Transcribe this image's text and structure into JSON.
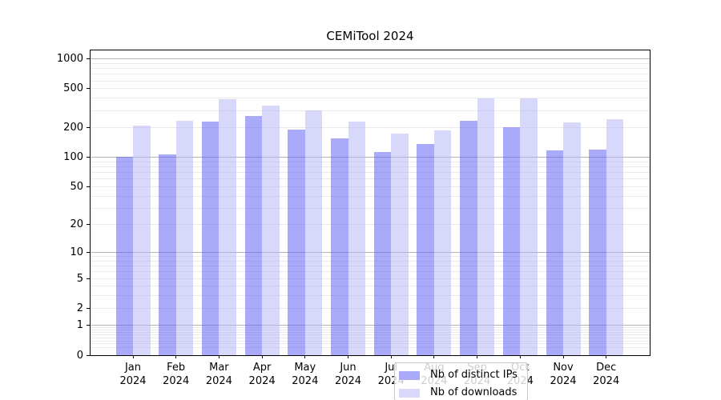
{
  "chart_data": {
    "type": "bar",
    "title": "CEMiTool 2024",
    "categories": [
      "Jan",
      "Feb",
      "Mar",
      "Apr",
      "May",
      "Jun",
      "Jul",
      "Aug",
      "Sep",
      "Oct",
      "Nov",
      "Dec"
    ],
    "year": "2024",
    "series": [
      {
        "name": "Nb of distinct IPs",
        "bar_color": "rgba(85,85,245,0.5)",
        "swatch_color": "#aaaafa",
        "values": [
          102,
          107,
          231,
          262,
          194,
          156,
          114,
          137,
          238,
          204,
          119,
          121
        ]
      },
      {
        "name": "Nb of downloads",
        "bar_color": "rgba(177,177,245,0.5)",
        "swatch_color": "#d8d8fa",
        "values": [
          210,
          238,
          389,
          340,
          300,
          233,
          174,
          190,
          402,
          402,
          226,
          244
        ]
      }
    ],
    "yscale": "log1p",
    "ylim": [
      0,
      1224
    ],
    "yticks": [
      {
        "v": 0,
        "label": "0"
      },
      {
        "v": 1,
        "label": "1"
      },
      {
        "v": 2,
        "label": "2"
      },
      {
        "v": 5,
        "label": "5"
      },
      {
        "v": 10,
        "label": "10"
      },
      {
        "v": 20,
        "label": "20"
      },
      {
        "v": 50,
        "label": "50"
      },
      {
        "v": 100,
        "label": "100"
      },
      {
        "v": 200,
        "label": "200"
      },
      {
        "v": 500,
        "label": "500"
      },
      {
        "v": 1000,
        "label": "1000"
      }
    ],
    "grid": {
      "major_values": [
        1,
        10,
        100,
        1000
      ],
      "major_color": "#b4b4b4",
      "minor_color": "#eaeaea"
    },
    "legend_position": "lower center",
    "background_color": "#ffffff",
    "spine_color": "#000000",
    "xlabel": "",
    "ylabel": ""
  }
}
